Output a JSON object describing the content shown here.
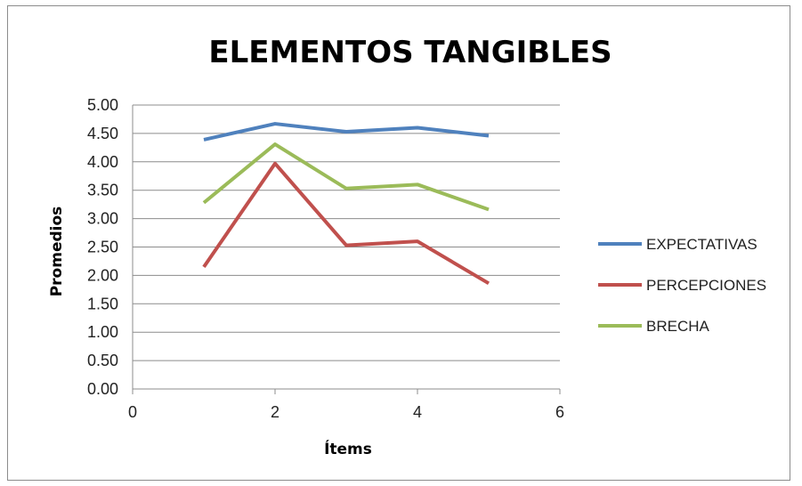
{
  "chart_data": {
    "type": "line",
    "title": "ELEMENTOS TANGIBLES",
    "xlabel": "Ítems",
    "ylabel": "Promedios",
    "xlim": [
      0,
      6
    ],
    "ylim": [
      0,
      5
    ],
    "xticks": [
      "0",
      "2",
      "4",
      "6"
    ],
    "yticks": [
      "0.00",
      "0.50",
      "1.00",
      "1.50",
      "2.00",
      "2.50",
      "3.00",
      "3.50",
      "4.00",
      "4.50",
      "5.00"
    ],
    "grid": "horizontal",
    "legend": "right",
    "x": [
      1,
      2,
      3,
      4,
      5
    ],
    "series": [
      {
        "name": "EXPECTATIVAS",
        "color": "#4f81bd",
        "values": [
          4.39,
          4.67,
          4.53,
          4.6,
          4.46
        ]
      },
      {
        "name": "PERCEPCIONES",
        "color": "#c0504d",
        "values": [
          2.15,
          3.97,
          2.53,
          2.6,
          1.86
        ]
      },
      {
        "name": "BRECHA",
        "color": "#9bbb59",
        "values": [
          3.28,
          4.31,
          3.53,
          3.6,
          3.16
        ]
      }
    ]
  }
}
